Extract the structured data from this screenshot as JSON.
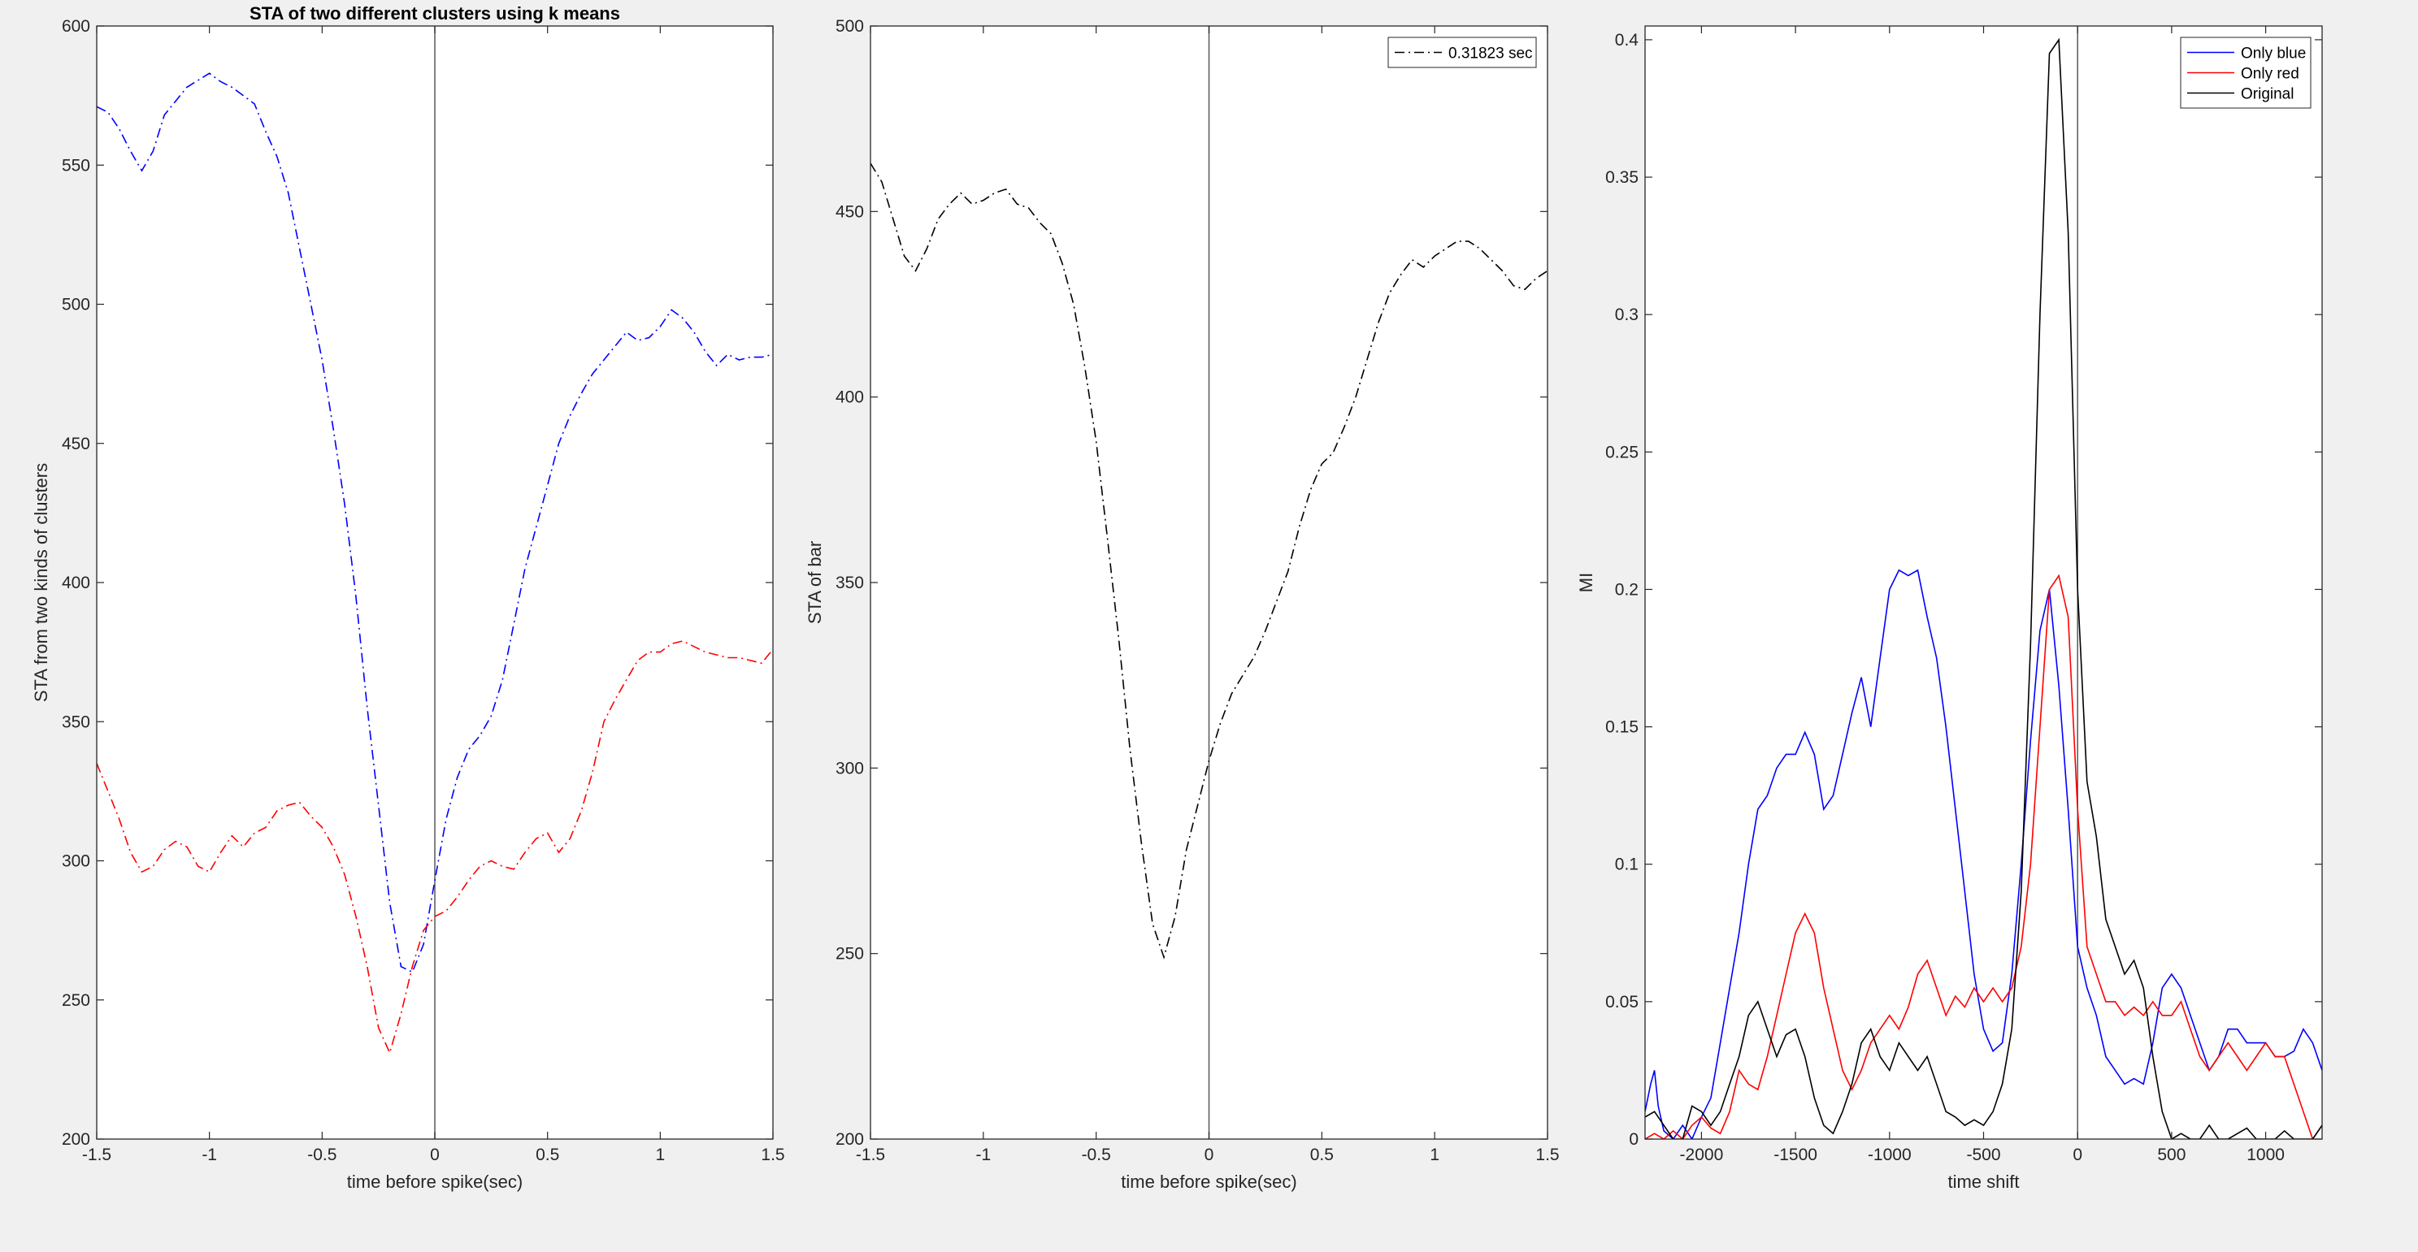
{
  "chart_data": [
    {
      "type": "line",
      "title": "STA of two different clusters using k means",
      "xlabel": "time before spike(sec)",
      "ylabel": "STA from two kinds of clusters",
      "xlim": [
        -1.5,
        1.5
      ],
      "ylim": [
        200,
        600
      ],
      "xticks": [
        -1.5,
        -1,
        -0.5,
        0,
        0.5,
        1,
        1.5
      ],
      "xtick_labels": [
        "-1.5",
        "-1",
        "-0.5",
        "0",
        "0.5",
        "1",
        "1.5"
      ],
      "yticks": [
        200,
        250,
        300,
        350,
        400,
        450,
        500,
        550,
        600
      ],
      "ytick_labels": [
        "200",
        "250",
        "300",
        "350",
        "400",
        "450",
        "500",
        "550",
        "600"
      ],
      "vline": 0,
      "grid": false,
      "series": [
        {
          "color": "#0000ff",
          "dash": "dashdot",
          "x": [
            -1.5,
            -1.45,
            -1.4,
            -1.35,
            -1.3,
            -1.25,
            -1.2,
            -1.1,
            -1.0,
            -0.95,
            -0.9,
            -0.85,
            -0.8,
            -0.75,
            -0.7,
            -0.65,
            -0.6,
            -0.55,
            -0.5,
            -0.45,
            -0.4,
            -0.35,
            -0.3,
            -0.25,
            -0.2,
            -0.15,
            -0.1,
            -0.05,
            0.0,
            0.05,
            0.1,
            0.15,
            0.2,
            0.25,
            0.3,
            0.35,
            0.4,
            0.45,
            0.5,
            0.55,
            0.6,
            0.65,
            0.7,
            0.75,
            0.8,
            0.85,
            0.9,
            0.95,
            1.0,
            1.05,
            1.1,
            1.15,
            1.2,
            1.25,
            1.3,
            1.35,
            1.4,
            1.45,
            1.5
          ],
          "y": [
            571,
            569,
            563,
            555,
            548,
            555,
            568,
            578,
            583,
            580,
            578,
            575,
            572,
            562,
            553,
            540,
            520,
            500,
            480,
            455,
            428,
            395,
            355,
            320,
            285,
            262,
            260,
            270,
            293,
            315,
            330,
            340,
            345,
            352,
            365,
            385,
            405,
            420,
            435,
            450,
            460,
            468,
            475,
            480,
            485,
            490,
            487,
            488,
            492,
            498,
            495,
            490,
            483,
            478,
            482,
            480,
            481,
            481,
            482
          ]
        },
        {
          "color": "#ff0000",
          "dash": "dashdot",
          "x": [
            -1.5,
            -1.45,
            -1.4,
            -1.35,
            -1.3,
            -1.25,
            -1.2,
            -1.15,
            -1.1,
            -1.05,
            -1.0,
            -0.95,
            -0.9,
            -0.85,
            -0.8,
            -0.75,
            -0.7,
            -0.65,
            -0.6,
            -0.55,
            -0.5,
            -0.45,
            -0.4,
            -0.35,
            -0.3,
            -0.25,
            -0.2,
            -0.15,
            -0.1,
            -0.05,
            0.0,
            0.05,
            0.1,
            0.15,
            0.2,
            0.25,
            0.3,
            0.35,
            0.4,
            0.45,
            0.5,
            0.55,
            0.6,
            0.65,
            0.7,
            0.75,
            0.8,
            0.85,
            0.9,
            0.95,
            1.0,
            1.05,
            1.1,
            1.15,
            1.2,
            1.25,
            1.3,
            1.35,
            1.4,
            1.45,
            1.5
          ],
          "y": [
            335,
            325,
            315,
            303,
            296,
            298,
            304,
            307,
            305,
            298,
            296,
            303,
            309,
            305,
            310,
            312,
            318,
            320,
            321,
            316,
            312,
            305,
            295,
            280,
            262,
            240,
            231,
            245,
            262,
            275,
            280,
            282,
            287,
            293,
            298,
            300,
            298,
            297,
            303,
            308,
            310,
            303,
            308,
            318,
            332,
            350,
            358,
            365,
            372,
            375,
            375,
            378,
            379,
            377,
            375,
            374,
            373,
            373,
            372,
            371,
            376
          ]
        }
      ]
    },
    {
      "type": "line",
      "xlabel": "time before spike(sec)",
      "ylabel": "STA of bar",
      "xlim": [
        -1.5,
        1.5
      ],
      "ylim": [
        200,
        500
      ],
      "xticks": [
        -1.5,
        -1,
        -0.5,
        0,
        0.5,
        1,
        1.5
      ],
      "xtick_labels": [
        "-1.5",
        "-1",
        "-0.5",
        "0",
        "0.5",
        "1",
        "1.5"
      ],
      "yticks": [
        200,
        250,
        300,
        350,
        400,
        450,
        500
      ],
      "ytick_labels": [
        "200",
        "250",
        "300",
        "350",
        "400",
        "450",
        "500"
      ],
      "vline": 0,
      "grid": false,
      "legend_position": "top-right",
      "series": [
        {
          "name": "0.31823 sec",
          "color": "#000000",
          "dash": "dashdot",
          "x": [
            -1.5,
            -1.45,
            -1.4,
            -1.35,
            -1.3,
            -1.25,
            -1.2,
            -1.15,
            -1.1,
            -1.05,
            -1.0,
            -0.95,
            -0.9,
            -0.85,
            -0.8,
            -0.75,
            -0.7,
            -0.65,
            -0.6,
            -0.55,
            -0.5,
            -0.45,
            -0.4,
            -0.35,
            -0.3,
            -0.25,
            -0.2,
            -0.15,
            -0.1,
            -0.05,
            0.0,
            0.05,
            0.1,
            0.15,
            0.2,
            0.25,
            0.3,
            0.35,
            0.4,
            0.45,
            0.5,
            0.55,
            0.6,
            0.65,
            0.7,
            0.75,
            0.8,
            0.85,
            0.9,
            0.95,
            1.0,
            1.05,
            1.1,
            1.15,
            1.2,
            1.25,
            1.3,
            1.35,
            1.4,
            1.45,
            1.5
          ],
          "y": [
            463,
            458,
            448,
            438,
            434,
            440,
            448,
            452,
            455,
            452,
            453,
            455,
            456,
            452,
            451,
            447,
            444,
            436,
            425,
            408,
            388,
            362,
            335,
            305,
            280,
            258,
            249,
            260,
            278,
            290,
            302,
            312,
            320,
            325,
            330,
            337,
            345,
            353,
            365,
            375,
            382,
            385,
            392,
            400,
            410,
            420,
            428,
            433,
            437,
            435,
            438,
            440,
            442,
            442,
            440,
            437,
            434,
            430,
            429,
            432,
            434
          ]
        }
      ]
    },
    {
      "type": "line",
      "xlabel": "time shift",
      "ylabel": "MI",
      "xlim": [
        -2300,
        1300
      ],
      "ylim": [
        0,
        0.405
      ],
      "xticks": [
        -2000,
        -1500,
        -1000,
        -500,
        0,
        500,
        1000
      ],
      "xtick_labels": [
        "-2000",
        "-1500",
        "-1000",
        "-500",
        "0",
        "500",
        "1000"
      ],
      "yticks": [
        0,
        0.05,
        0.1,
        0.15,
        0.2,
        0.25,
        0.3,
        0.35,
        0.4
      ],
      "ytick_labels": [
        "0",
        "0.05",
        "0.1",
        "0.15",
        "0.2",
        "0.25",
        "0.3",
        "0.35",
        "0.4"
      ],
      "vline": 0,
      "grid": false,
      "legend_position": "top-right",
      "series": [
        {
          "name": "Only blue",
          "color": "#0000ff",
          "x": [
            -2300,
            -2270,
            -2250,
            -2230,
            -2200,
            -2150,
            -2100,
            -2050,
            -2000,
            -1950,
            -1900,
            -1850,
            -1800,
            -1750,
            -1700,
            -1650,
            -1600,
            -1550,
            -1500,
            -1450,
            -1400,
            -1350,
            -1300,
            -1250,
            -1200,
            -1150,
            -1100,
            -1050,
            -1000,
            -950,
            -900,
            -850,
            -800,
            -750,
            -700,
            -650,
            -600,
            -550,
            -500,
            -450,
            -400,
            -350,
            -300,
            -250,
            -200,
            -150,
            -100,
            -50,
            0,
            50,
            100,
            150,
            200,
            250,
            300,
            350,
            400,
            450,
            500,
            550,
            600,
            650,
            700,
            750,
            800,
            850,
            900,
            950,
            1000,
            1050,
            1100,
            1150,
            1200,
            1250,
            1300
          ],
          "y": [
            0.01,
            0.02,
            0.025,
            0.012,
            0.003,
            0.0,
            0.005,
            0.0,
            0.008,
            0.015,
            0.035,
            0.055,
            0.075,
            0.1,
            0.12,
            0.125,
            0.135,
            0.14,
            0.14,
            0.148,
            0.14,
            0.12,
            0.125,
            0.14,
            0.155,
            0.168,
            0.15,
            0.175,
            0.2,
            0.207,
            0.205,
            0.207,
            0.19,
            0.175,
            0.15,
            0.12,
            0.09,
            0.06,
            0.04,
            0.032,
            0.035,
            0.06,
            0.1,
            0.145,
            0.185,
            0.2,
            0.165,
            0.12,
            0.07,
            0.055,
            0.045,
            0.03,
            0.025,
            0.02,
            0.022,
            0.02,
            0.035,
            0.055,
            0.06,
            0.055,
            0.045,
            0.035,
            0.025,
            0.03,
            0.04,
            0.04,
            0.035,
            0.035,
            0.035,
            0.03,
            0.03,
            0.032,
            0.04,
            0.035,
            0.025
          ]
        },
        {
          "name": "Only red",
          "color": "#ff0000",
          "x": [
            -2300,
            -2250,
            -2200,
            -2150,
            -2100,
            -2050,
            -2000,
            -1950,
            -1900,
            -1850,
            -1800,
            -1750,
            -1700,
            -1650,
            -1600,
            -1550,
            -1500,
            -1450,
            -1400,
            -1350,
            -1300,
            -1250,
            -1200,
            -1150,
            -1100,
            -1050,
            -1000,
            -950,
            -900,
            -850,
            -800,
            -750,
            -700,
            -650,
            -600,
            -550,
            -500,
            -450,
            -400,
            -350,
            -300,
            -250,
            -200,
            -150,
            -100,
            -50,
            0,
            50,
            100,
            150,
            200,
            250,
            300,
            350,
            400,
            450,
            500,
            550,
            600,
            650,
            700,
            750,
            800,
            850,
            900,
            950,
            1000,
            1050,
            1100,
            1150,
            1200,
            1250,
            1300
          ],
          "y": [
            0.0,
            0.002,
            0.0,
            0.003,
            0.0,
            0.005,
            0.008,
            0.004,
            0.002,
            0.01,
            0.025,
            0.02,
            0.018,
            0.03,
            0.045,
            0.06,
            0.075,
            0.082,
            0.075,
            0.055,
            0.04,
            0.025,
            0.018,
            0.025,
            0.035,
            0.04,
            0.045,
            0.04,
            0.048,
            0.06,
            0.065,
            0.055,
            0.045,
            0.052,
            0.048,
            0.055,
            0.05,
            0.055,
            0.05,
            0.055,
            0.07,
            0.1,
            0.15,
            0.2,
            0.205,
            0.19,
            0.12,
            0.07,
            0.06,
            0.05,
            0.05,
            0.045,
            0.048,
            0.045,
            0.05,
            0.045,
            0.045,
            0.05,
            0.04,
            0.03,
            0.025,
            0.03,
            0.035,
            0.03,
            0.025,
            0.03,
            0.035,
            0.03,
            0.03,
            0.02,
            0.01,
            0.0,
            0.005
          ]
        },
        {
          "name": "Original",
          "color": "#000000",
          "x": [
            -2300,
            -2250,
            -2200,
            -2150,
            -2100,
            -2050,
            -2000,
            -1950,
            -1900,
            -1850,
            -1800,
            -1750,
            -1700,
            -1650,
            -1600,
            -1550,
            -1500,
            -1450,
            -1400,
            -1350,
            -1300,
            -1250,
            -1200,
            -1150,
            -1100,
            -1050,
            -1000,
            -950,
            -900,
            -850,
            -800,
            -750,
            -700,
            -650,
            -600,
            -550,
            -500,
            -450,
            -400,
            -350,
            -300,
            -250,
            -200,
            -150,
            -100,
            -50,
            0,
            50,
            100,
            150,
            200,
            250,
            300,
            350,
            400,
            450,
            500,
            550,
            600,
            650,
            700,
            750,
            800,
            850,
            900,
            950,
            1000,
            1050,
            1100,
            1150,
            1200,
            1250,
            1300
          ],
          "y": [
            0.008,
            0.01,
            0.005,
            0.0,
            0.0,
            0.012,
            0.01,
            0.005,
            0.01,
            0.02,
            0.03,
            0.045,
            0.05,
            0.04,
            0.03,
            0.038,
            0.04,
            0.03,
            0.015,
            0.005,
            0.002,
            0.01,
            0.02,
            0.035,
            0.04,
            0.03,
            0.025,
            0.035,
            0.03,
            0.025,
            0.03,
            0.02,
            0.01,
            0.008,
            0.005,
            0.007,
            0.005,
            0.01,
            0.02,
            0.04,
            0.09,
            0.18,
            0.3,
            0.395,
            0.4,
            0.33,
            0.2,
            0.13,
            0.11,
            0.08,
            0.07,
            0.06,
            0.065,
            0.055,
            0.03,
            0.01,
            0.0,
            0.002,
            0.0,
            0.0,
            0.005,
            0.0,
            0.0,
            0.002,
            0.004,
            0.0,
            0.0,
            0.0,
            0.003,
            0.0,
            0.0,
            0.0,
            0.005
          ]
        }
      ]
    }
  ]
}
